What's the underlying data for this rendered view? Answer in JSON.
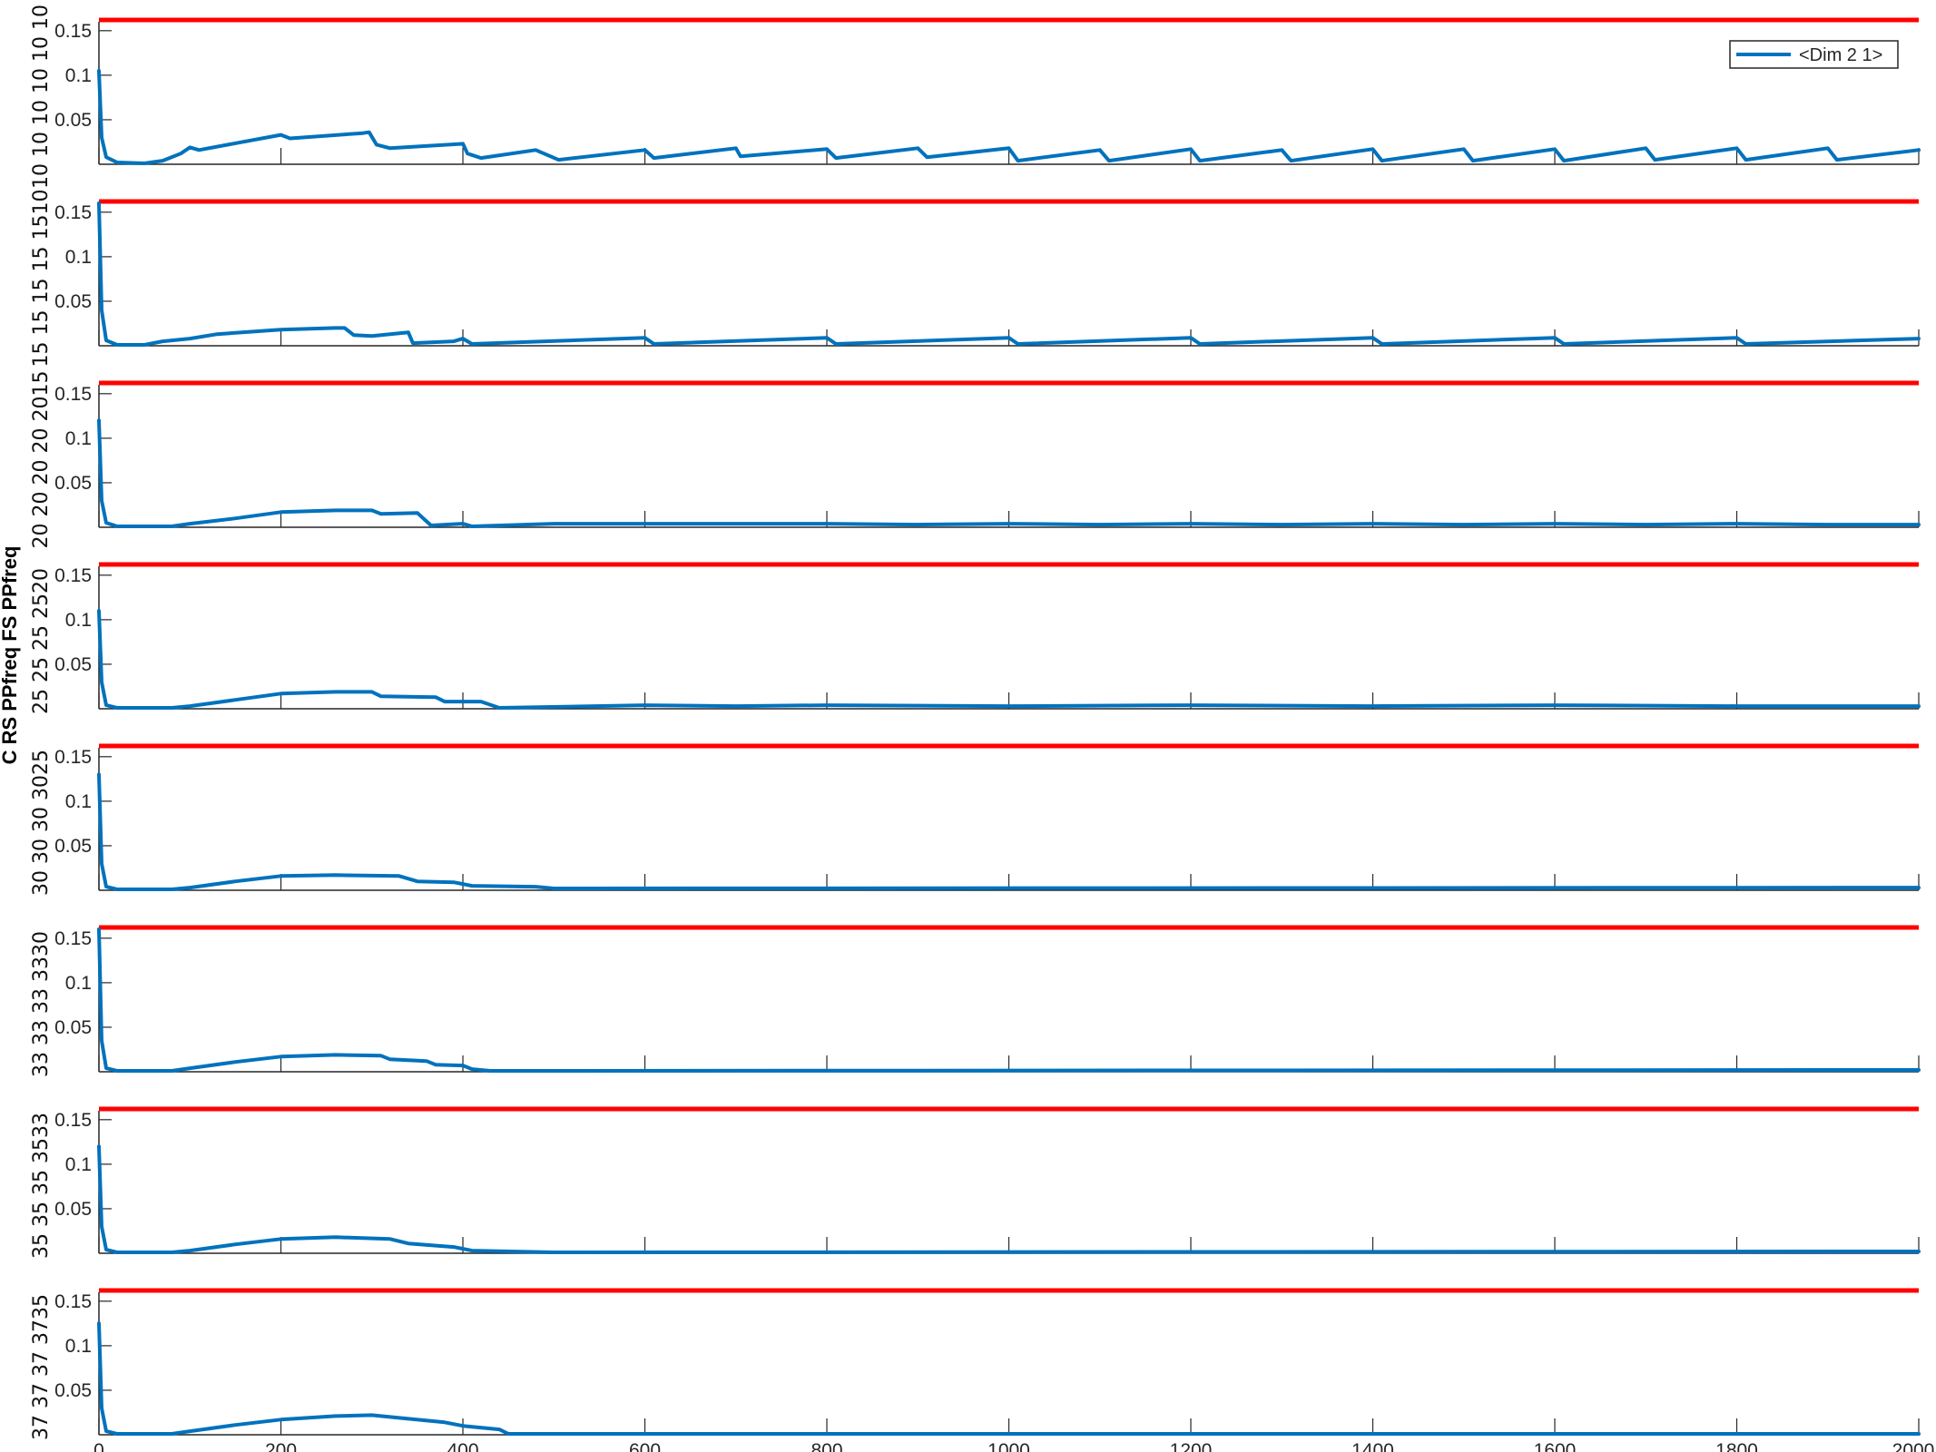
{
  "colors": {
    "series": "#0072BD",
    "threshold": "#FF0000",
    "axis": "#262626",
    "background": "#FFFFFF"
  },
  "chart_data": {
    "type": "line",
    "ylabel": "C RS PPfreq FS PPfreq",
    "legend": {
      "label": "<Dim 2 1>",
      "placement": "top-right"
    },
    "xlim": [
      0,
      2000
    ],
    "ylim": [
      0,
      0.16
    ],
    "x_ticks": [
      "0",
      "200",
      "400",
      "600",
      "800",
      "1000",
      "1200",
      "1400",
      "1600",
      "1800",
      "2000"
    ],
    "y_ticks": [
      "0.05",
      "0.1",
      "0.15"
    ],
    "threshold_value": 0.162,
    "panels": [
      {
        "side_label": "10 10 10 10 10 10",
        "series_points": [
          [
            0,
            0.105
          ],
          [
            3,
            0.03
          ],
          [
            8,
            0.008
          ],
          [
            20,
            0.002
          ],
          [
            50,
            0.001
          ],
          [
            70,
            0.004
          ],
          [
            90,
            0.012
          ],
          [
            100,
            0.019
          ],
          [
            110,
            0.016
          ],
          [
            200,
            0.033
          ],
          [
            210,
            0.029
          ],
          [
            290,
            0.035
          ],
          [
            297,
            0.036
          ],
          [
            305,
            0.022
          ],
          [
            320,
            0.018
          ],
          [
            400,
            0.023
          ],
          [
            405,
            0.012
          ],
          [
            420,
            0.007
          ],
          [
            480,
            0.016
          ],
          [
            505,
            0.005
          ],
          [
            600,
            0.016
          ],
          [
            610,
            0.007
          ],
          [
            700,
            0.018
          ],
          [
            705,
            0.009
          ],
          [
            800,
            0.017
          ],
          [
            810,
            0.007
          ],
          [
            900,
            0.018
          ],
          [
            910,
            0.008
          ],
          [
            1000,
            0.018
          ],
          [
            1010,
            0.004
          ],
          [
            1100,
            0.016
          ],
          [
            1110,
            0.004
          ],
          [
            1200,
            0.017
          ],
          [
            1210,
            0.004
          ],
          [
            1300,
            0.016
          ],
          [
            1310,
            0.004
          ],
          [
            1400,
            0.017
          ],
          [
            1410,
            0.004
          ],
          [
            1500,
            0.017
          ],
          [
            1510,
            0.004
          ],
          [
            1600,
            0.017
          ],
          [
            1610,
            0.004
          ],
          [
            1700,
            0.018
          ],
          [
            1710,
            0.005
          ],
          [
            1800,
            0.018
          ],
          [
            1810,
            0.005
          ],
          [
            1900,
            0.018
          ],
          [
            1910,
            0.005
          ],
          [
            2000,
            0.016
          ]
        ]
      },
      {
        "side_label": "15 15 15 15 1510",
        "series_points": [
          [
            0,
            0.16
          ],
          [
            3,
            0.04
          ],
          [
            8,
            0.006
          ],
          [
            20,
            0.001
          ],
          [
            50,
            0.001
          ],
          [
            70,
            0.005
          ],
          [
            100,
            0.008
          ],
          [
            130,
            0.013
          ],
          [
            200,
            0.018
          ],
          [
            260,
            0.02
          ],
          [
            270,
            0.02
          ],
          [
            280,
            0.012
          ],
          [
            300,
            0.011
          ],
          [
            340,
            0.015
          ],
          [
            345,
            0.003
          ],
          [
            390,
            0.005
          ],
          [
            400,
            0.008
          ],
          [
            410,
            0.002
          ],
          [
            600,
            0.009
          ],
          [
            610,
            0.002
          ],
          [
            800,
            0.009
          ],
          [
            810,
            0.002
          ],
          [
            1000,
            0.009
          ],
          [
            1010,
            0.002
          ],
          [
            1200,
            0.009
          ],
          [
            1210,
            0.002
          ],
          [
            1400,
            0.009
          ],
          [
            1410,
            0.002
          ],
          [
            1600,
            0.009
          ],
          [
            1610,
            0.002
          ],
          [
            1800,
            0.009
          ],
          [
            1810,
            0.002
          ],
          [
            2000,
            0.008
          ]
        ]
      },
      {
        "side_label": "20 20 20 20 2015",
        "series_points": [
          [
            0,
            0.12
          ],
          [
            3,
            0.03
          ],
          [
            8,
            0.005
          ],
          [
            20,
            0.001
          ],
          [
            80,
            0.001
          ],
          [
            100,
            0.004
          ],
          [
            150,
            0.01
          ],
          [
            200,
            0.017
          ],
          [
            260,
            0.019
          ],
          [
            300,
            0.019
          ],
          [
            310,
            0.015
          ],
          [
            350,
            0.016
          ],
          [
            365,
            0.002
          ],
          [
            400,
            0.004
          ],
          [
            410,
            0.001
          ],
          [
            500,
            0.004
          ],
          [
            600,
            0.004
          ],
          [
            700,
            0.004
          ],
          [
            800,
            0.004
          ],
          [
            900,
            0.003
          ],
          [
            1000,
            0.004
          ],
          [
            1100,
            0.003
          ],
          [
            1200,
            0.004
          ],
          [
            1300,
            0.003
          ],
          [
            1400,
            0.004
          ],
          [
            1500,
            0.003
          ],
          [
            1600,
            0.004
          ],
          [
            1700,
            0.003
          ],
          [
            1800,
            0.004
          ],
          [
            1900,
            0.003
          ],
          [
            2000,
            0.003
          ]
        ]
      },
      {
        "side_label": "25 25 25 2520",
        "series_points": [
          [
            0,
            0.11
          ],
          [
            3,
            0.03
          ],
          [
            8,
            0.004
          ],
          [
            20,
            0.001
          ],
          [
            80,
            0.001
          ],
          [
            100,
            0.003
          ],
          [
            150,
            0.01
          ],
          [
            200,
            0.017
          ],
          [
            260,
            0.019
          ],
          [
            300,
            0.019
          ],
          [
            310,
            0.014
          ],
          [
            370,
            0.013
          ],
          [
            380,
            0.008
          ],
          [
            420,
            0.008
          ],
          [
            440,
            0.001
          ],
          [
            600,
            0.004
          ],
          [
            700,
            0.003
          ],
          [
            800,
            0.004
          ],
          [
            1000,
            0.003
          ],
          [
            1200,
            0.004
          ],
          [
            1400,
            0.003
          ],
          [
            1600,
            0.004
          ],
          [
            1800,
            0.003
          ],
          [
            2000,
            0.003
          ]
        ]
      },
      {
        "side_label": "30 30 30 3025",
        "series_points": [
          [
            0,
            0.13
          ],
          [
            3,
            0.03
          ],
          [
            8,
            0.004
          ],
          [
            20,
            0.001
          ],
          [
            80,
            0.001
          ],
          [
            100,
            0.003
          ],
          [
            150,
            0.01
          ],
          [
            200,
            0.016
          ],
          [
            260,
            0.017
          ],
          [
            330,
            0.016
          ],
          [
            350,
            0.01
          ],
          [
            390,
            0.009
          ],
          [
            410,
            0.005
          ],
          [
            480,
            0.004
          ],
          [
            500,
            0.002
          ],
          [
            2000,
            0.003
          ]
        ]
      },
      {
        "side_label": "33 33 33 3330",
        "series_points": [
          [
            0,
            0.16
          ],
          [
            3,
            0.035
          ],
          [
            8,
            0.004
          ],
          [
            20,
            0.001
          ],
          [
            80,
            0.001
          ],
          [
            100,
            0.004
          ],
          [
            150,
            0.011
          ],
          [
            200,
            0.017
          ],
          [
            260,
            0.019
          ],
          [
            310,
            0.018
          ],
          [
            320,
            0.014
          ],
          [
            360,
            0.012
          ],
          [
            370,
            0.008
          ],
          [
            400,
            0.007
          ],
          [
            410,
            0.003
          ],
          [
            430,
            0.001
          ],
          [
            2000,
            0.002
          ]
        ]
      },
      {
        "side_label": "35 35 35 3533",
        "series_points": [
          [
            0,
            0.12
          ],
          [
            3,
            0.03
          ],
          [
            8,
            0.004
          ],
          [
            20,
            0.001
          ],
          [
            80,
            0.001
          ],
          [
            100,
            0.003
          ],
          [
            150,
            0.01
          ],
          [
            200,
            0.016
          ],
          [
            260,
            0.018
          ],
          [
            320,
            0.016
          ],
          [
            340,
            0.011
          ],
          [
            390,
            0.007
          ],
          [
            410,
            0.003
          ],
          [
            500,
            0.001
          ],
          [
            2000,
            0.002
          ]
        ]
      },
      {
        "side_label": "37 37 37 3735",
        "series_points": [
          [
            0,
            0.125
          ],
          [
            3,
            0.03
          ],
          [
            8,
            0.004
          ],
          [
            20,
            0.001
          ],
          [
            80,
            0.001
          ],
          [
            100,
            0.004
          ],
          [
            150,
            0.011
          ],
          [
            200,
            0.017
          ],
          [
            260,
            0.021
          ],
          [
            300,
            0.022
          ],
          [
            330,
            0.019
          ],
          [
            380,
            0.014
          ],
          [
            400,
            0.01
          ],
          [
            440,
            0.006
          ],
          [
            450,
            0.001
          ],
          [
            2000,
            0.001
          ]
        ]
      }
    ]
  }
}
